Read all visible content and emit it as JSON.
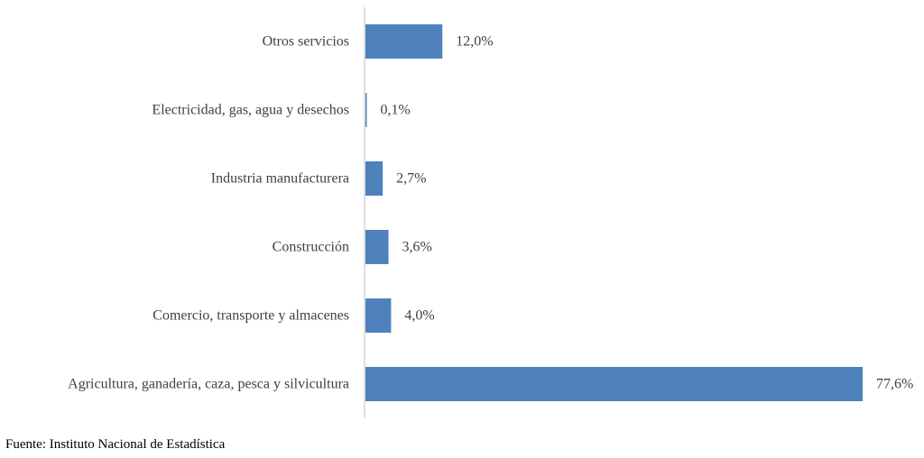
{
  "chart_data": {
    "type": "bar",
    "orientation": "horizontal",
    "categories": [
      "Otros servicios",
      "Electricidad, gas, agua y desechos",
      "Industria manufacturera",
      "Construcción",
      "Comercio, transporte y almacenes",
      "Agricultura, ganadería, caza, pesca y silvicultura"
    ],
    "values": [
      12.0,
      0.1,
      2.7,
      3.6,
      4.0,
      77.6
    ],
    "value_labels": [
      "12,0%",
      "0,1%",
      "2,7%",
      "3,6%",
      "4,0%",
      "77,6%"
    ],
    "xlim": [
      0,
      77.6
    ],
    "grid": false,
    "legend": "none",
    "colors": {
      "bar": "#4F81BD",
      "axis": "#BFBFBF",
      "text": "#404040"
    }
  },
  "source": "Fuente: Instituto  Nacional de Estadística"
}
